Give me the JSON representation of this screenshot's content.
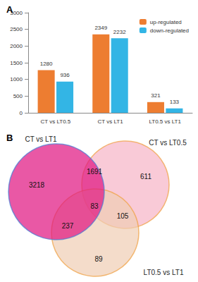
{
  "chart_data": [
    {
      "type": "bar",
      "title": "A",
      "categories": [
        "CT vs LT0.5",
        "CT vs LT1",
        "LT0.5 vs LT1"
      ],
      "series": [
        {
          "name": "up-regulated",
          "color": "#ed7d31",
          "values": [
            1280,
            2349,
            321
          ]
        },
        {
          "name": "down-regulated",
          "color": "#33b5e5",
          "values": [
            936,
            2232,
            133
          ]
        }
      ],
      "ylim": [
        0,
        3000
      ],
      "yticks": [
        0,
        500,
        1000,
        1500,
        2000,
        2500,
        3000
      ],
      "data_labels": true,
      "legend": "upper right",
      "grid": false
    },
    {
      "type": "venn",
      "title": "B",
      "sets": [
        {
          "name": "CT vs LT1",
          "color": "#e0117f"
        },
        {
          "name": "CT vs LT0.5",
          "color": "#f6b3c6"
        },
        {
          "name": "LT0.5 vs LT1",
          "color": "#f0cdb4"
        }
      ],
      "regions": [
        {
          "sets": [
            "CT vs LT1"
          ],
          "value": 3218
        },
        {
          "sets": [
            "CT vs LT1",
            "CT vs LT0.5"
          ],
          "value": 1691
        },
        {
          "sets": [
            "CT vs LT0.5"
          ],
          "value": 611
        },
        {
          "sets": [
            "CT vs LT1",
            "CT vs LT0.5",
            "LT0.5 vs LT1"
          ],
          "value": 83
        },
        {
          "sets": [
            "CT vs LT1",
            "LT0.5 vs LT1"
          ],
          "value": 237
        },
        {
          "sets": [
            "CT vs LT0.5",
            "LT0.5 vs LT1"
          ],
          "value": 105
        },
        {
          "sets": [
            "LT0.5 vs LT1"
          ],
          "value": 89
        }
      ]
    }
  ]
}
